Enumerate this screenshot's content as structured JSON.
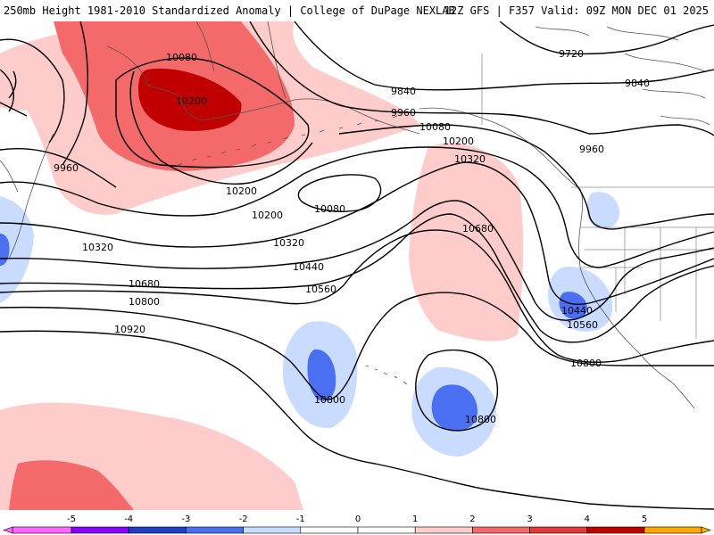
{
  "header": {
    "title_left": "250mb Height 1981-2010 Standardized Anomaly | College of DuPage NEXLAB",
    "title_right": "12Z GFS | F357 Valid: 09Z MON DEC 01 2025"
  },
  "colors": {
    "neg5": "#ff66ff",
    "neg4": "#8b00ff",
    "neg3": "#1f3ec4",
    "neg2": "#4a6ff0",
    "neg1": "#c9dcff",
    "zero": "#ffffff",
    "pos1": "#ffcccc",
    "pos2": "#f46a6a",
    "pos3": "#e23a3a",
    "pos4": "#c00000",
    "pos5": "#ffaa00",
    "contour": "#000000",
    "coast": "#555555"
  },
  "contour_labels": {
    "l9720": "9720",
    "l9840a": "9840",
    "l9840b": "9840",
    "l9960a": "9960",
    "l9960b": "9960",
    "l9960c": "9960",
    "l10080a": "10080",
    "l10080b": "10080",
    "l10080c": "10080",
    "l10200a": "10200",
    "l10200b": "10200",
    "l10200c": "10200",
    "l10200d": "10200",
    "l10320a": "10320",
    "l10320b": "10320",
    "l10320c": "10320",
    "l10440a": "10440",
    "l10440b": "10440",
    "l10560a": "10560",
    "l10560b": "10560",
    "l10680a": "10680",
    "l10680b": "10680",
    "l10800a": "10800",
    "l10800b": "10800",
    "l10800c": "10800",
    "l10800d": "10800",
    "l10920": "10920"
  },
  "colorbar": {
    "ticks": [
      "-5",
      "-4",
      "-3",
      "-2",
      "-1",
      "0",
      "1",
      "2",
      "3",
      "4",
      "5"
    ]
  }
}
